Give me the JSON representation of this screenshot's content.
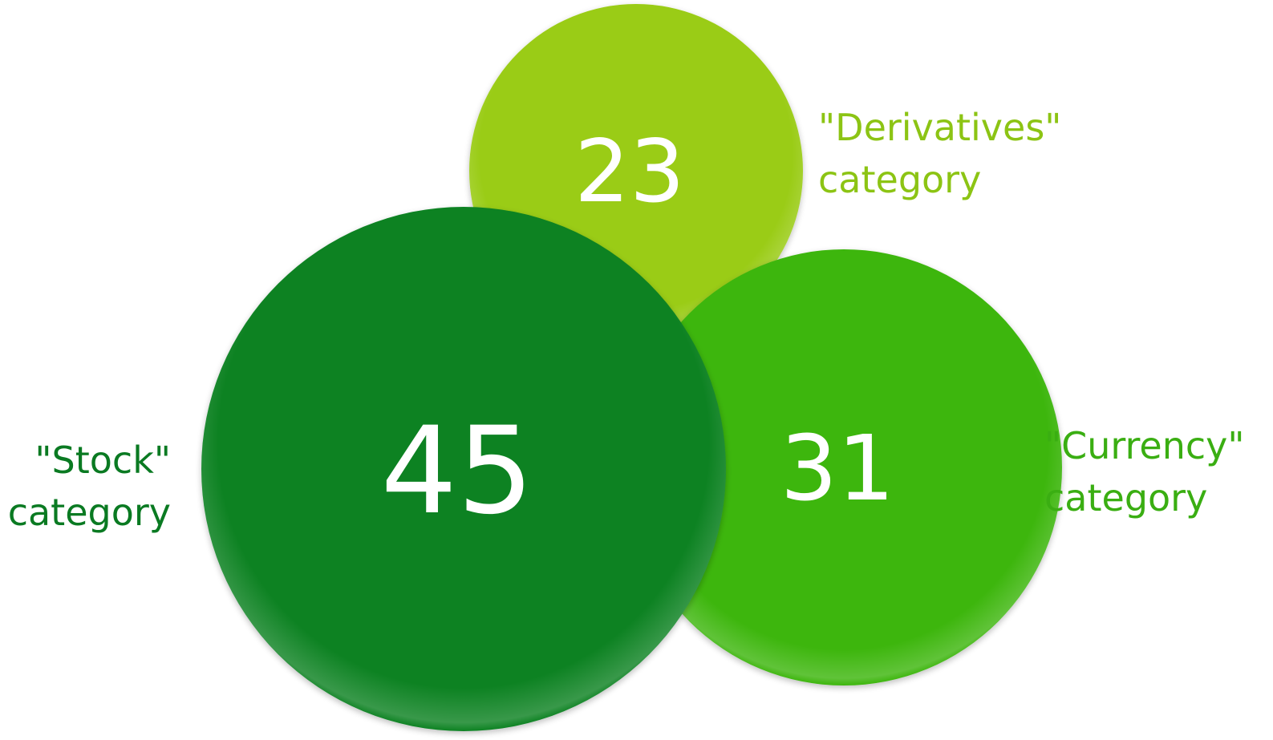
{
  "chart_data": {
    "type": "bubble",
    "series": [
      {
        "category": "Stock",
        "value": 45,
        "label_line1": "\"Stock\"",
        "label_line2": "category",
        "color": "#0A8224",
        "label_color": "#0A7A22"
      },
      {
        "category": "Derivatives",
        "value": 23,
        "label_line1": "\"Derivatives\"",
        "label_line2": "category",
        "color": "#9ACC12",
        "label_color": "#8CC414"
      },
      {
        "category": "Currency",
        "value": 31,
        "label_line1": "\"Currency\"",
        "label_line2": "category",
        "color": "#3DB611",
        "label_color": "#3AAE12"
      }
    ]
  }
}
